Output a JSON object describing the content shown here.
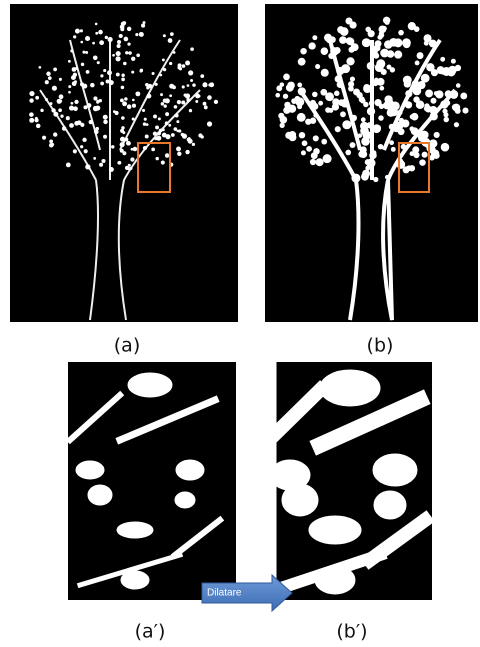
{
  "labels": {
    "a": "(a)",
    "b": "(b)",
    "a_prime": "(a′)",
    "b_prime": "(b′)"
  },
  "arrow": {
    "label": "Dilatare"
  }
}
